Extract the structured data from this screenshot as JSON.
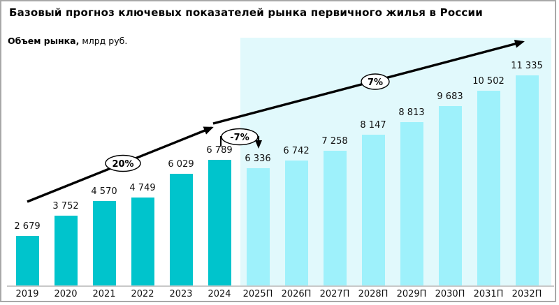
{
  "header": {
    "title": "Базовый прогноз ключевых показателей рынка первичного жилья в России",
    "subtitle_bold": "Объем рынка,",
    "subtitle_units": " млрд руб."
  },
  "chart_data": {
    "type": "bar",
    "title": "Базовый прогноз ключевых показателей рынка первичного жилья в России",
    "ylabel": "Объем рынка, млрд руб.",
    "xlabel": "",
    "categories": [
      "2019",
      "2020",
      "2021",
      "2022",
      "2023",
      "2024",
      "2025П",
      "2026П",
      "2027П",
      "2028П",
      "2029П",
      "2030П",
      "2031П",
      "2032П"
    ],
    "values": [
      2679,
      3752,
      4570,
      4749,
      6029,
      6789,
      6336,
      6742,
      7258,
      8147,
      8813,
      9683,
      10502,
      11335
    ],
    "value_labels": [
      "2 679",
      "3 752",
      "4 570",
      "4 749",
      "6 029",
      "6 789",
      "6 336",
      "6 742",
      "7 258",
      "8 147",
      "8 813",
      "9 683",
      "10 502",
      "11 335"
    ],
    "forecast_start_index": 6,
    "ylim": [
      0,
      11500
    ],
    "grid": false,
    "legend": false,
    "annotations": [
      {
        "label": "20%"
      },
      {
        "label": "-7%"
      },
      {
        "label": "7%"
      }
    ],
    "colors": {
      "bar_actual": "#00c4cc",
      "bar_forecast": "#9ef1fb",
      "forecast_bg": "#e1f9fc",
      "axis_line": "#c8c8c8",
      "trend_line": "#000000",
      "border": "#a8a8a8"
    }
  }
}
